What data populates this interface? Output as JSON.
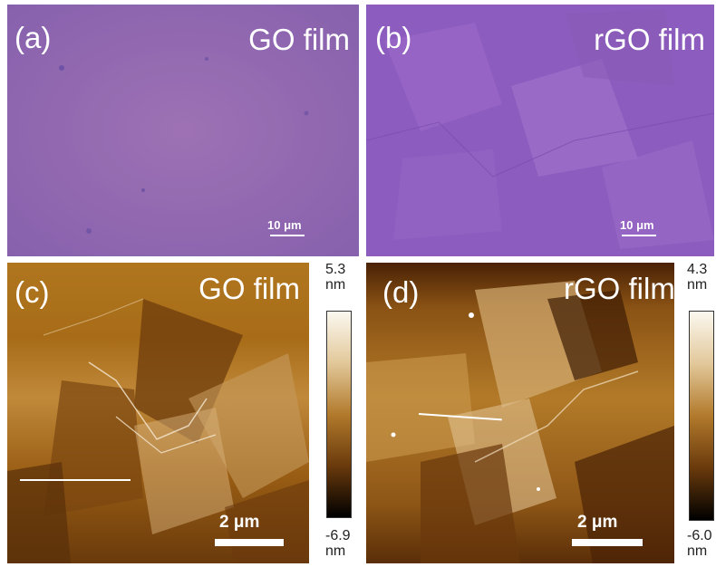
{
  "panels": {
    "a": {
      "label": "(a)",
      "title": "GO film",
      "scalebar": "10 μm"
    },
    "b": {
      "label": "(b)",
      "title": "rGO film",
      "scalebar": "10 μm"
    },
    "c": {
      "label": "(c)",
      "title": "GO film",
      "scalebar": "2  μm",
      "colorbar": {
        "max": "5.3",
        "min": "-6.9",
        "unit": "nm"
      }
    },
    "d": {
      "label": "(d)",
      "title": "rGO film",
      "scalebar": "2  μm",
      "colorbar": {
        "max": "4.3",
        "min": "-6.0",
        "unit": "nm"
      }
    }
  },
  "colors": {
    "go_optical": "#8a64b4",
    "rgo_optical": "#8c5cc0",
    "afm_dark": "#2a1000",
    "afm_mid": "#a66a18",
    "afm_light": "#f4ecd8"
  }
}
